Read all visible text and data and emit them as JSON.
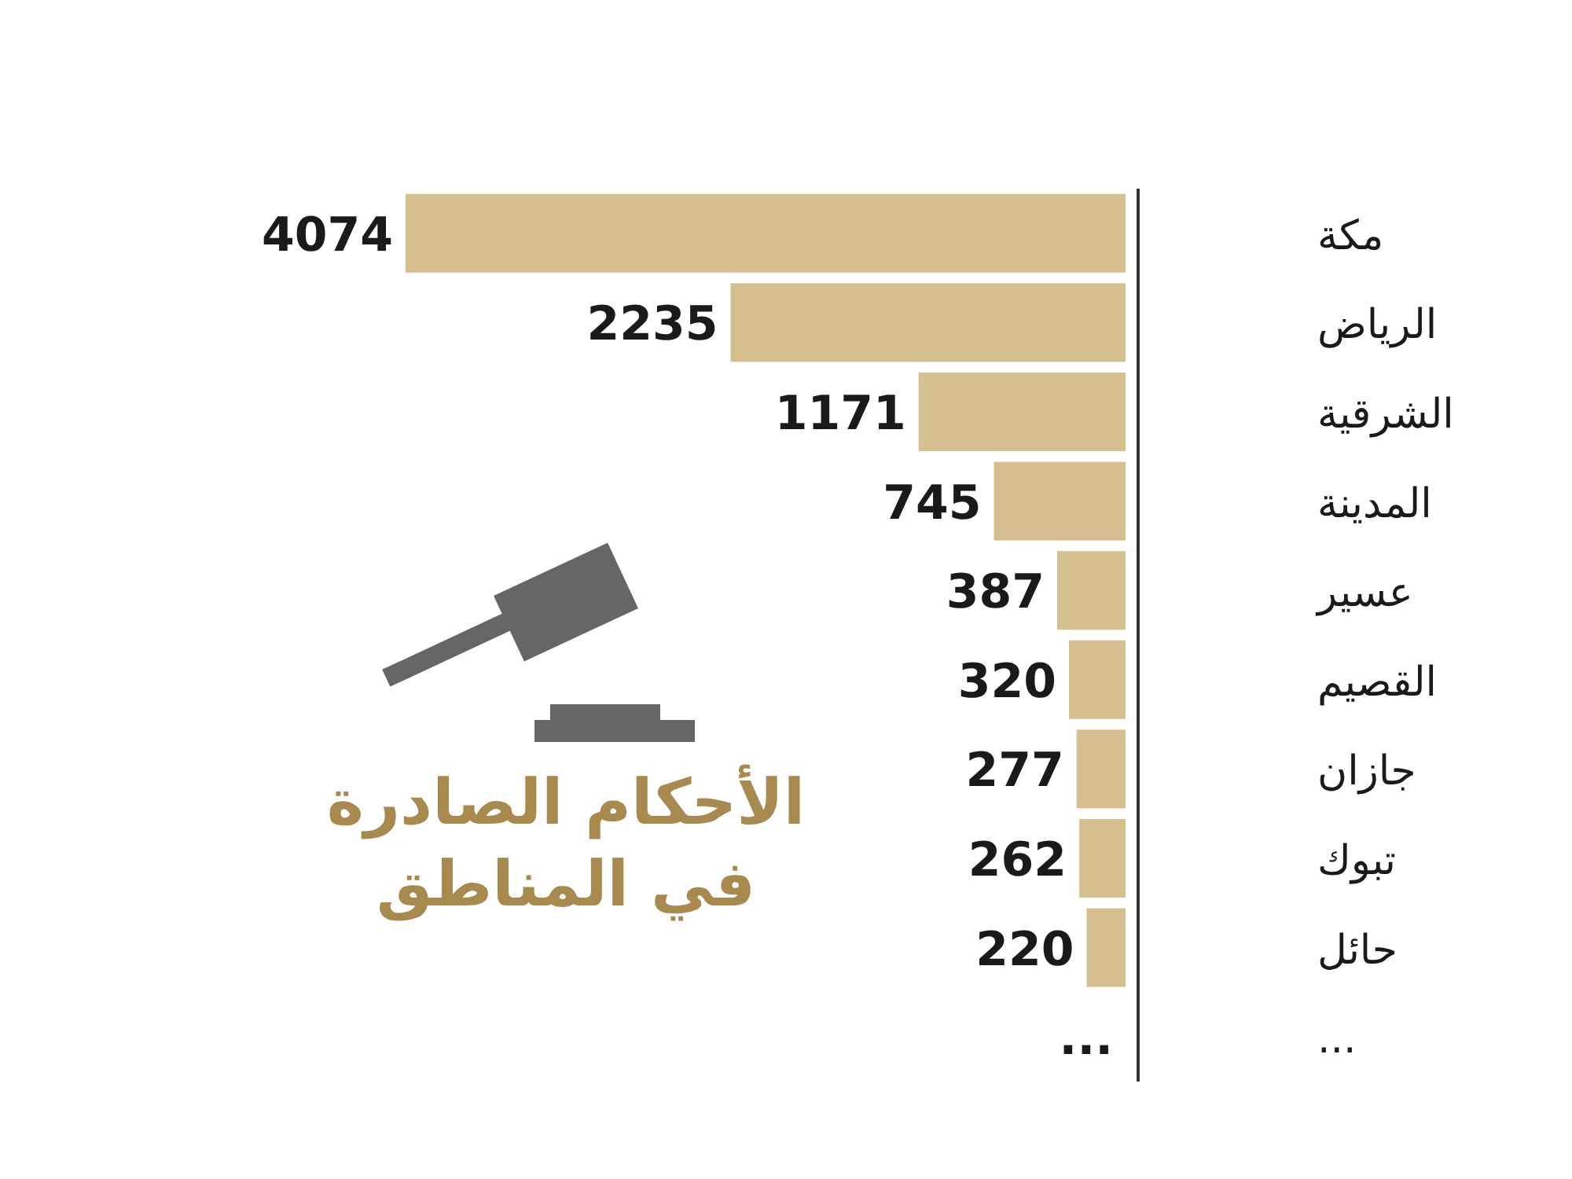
{
  "chart_data": {
    "type": "bar",
    "orientation": "horizontal",
    "title": "الأحكام الصادرة في المناطق",
    "categories": [
      "مكة",
      "الرياض",
      "الشرقية",
      "المدينة",
      "عسير",
      "القصيم",
      "جازان",
      "تبوك",
      "حائل",
      "..."
    ],
    "values": [
      4074,
      2235,
      1171,
      745,
      387,
      320,
      277,
      262,
      220,
      null
    ],
    "value_labels": [
      "4074",
      "2235",
      "1171",
      "745",
      "387",
      "320",
      "277",
      "262",
      "220",
      "..."
    ],
    "color": "#d6bf8e"
  }
}
